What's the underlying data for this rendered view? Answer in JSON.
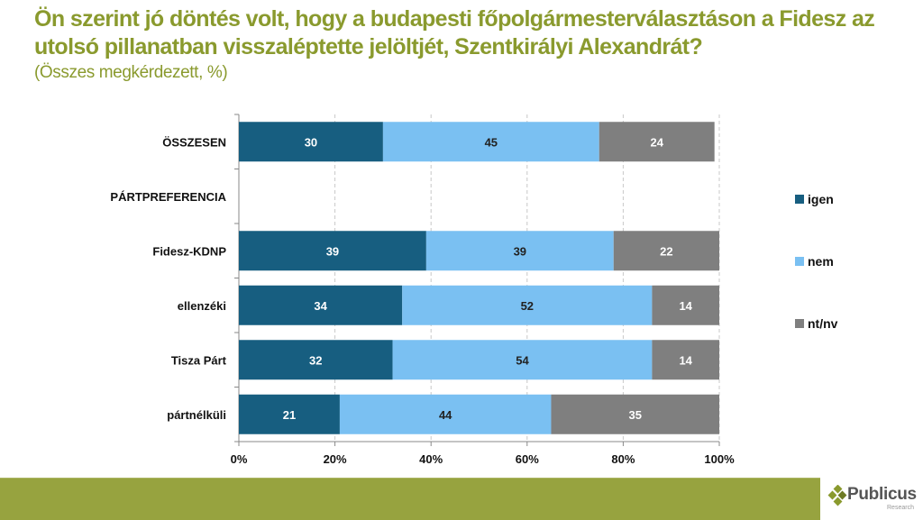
{
  "header": {
    "title": "Ön szerint jó döntés volt, hogy a budapesti főpolgármesterválasztáson a Fidesz az utolsó pillanatban visszaléptette jelöltjét, Szentkirályi Alexandrát?",
    "subtitle": "(Összes megkérdezett, %)"
  },
  "brand": {
    "name": "Publicus",
    "sub": "Research",
    "footer_color": "#97a33f",
    "title_color": "#8a9a2e"
  },
  "chart_data": {
    "type": "bar",
    "orientation": "horizontal",
    "stacked": "percent",
    "title": "Ön szerint jó döntés volt, hogy a budapesti főpolgármesterválasztáson a Fidesz az utolsó pillanatban visszaléptette jelöltjét, Szentkirályi Alexandrát?",
    "subtitle": "(Összes megkérdezett, %)",
    "categories": [
      "ÖSSZESEN",
      "PÁRTPREFERENCIA",
      "Fidesz-KDNP",
      "ellenzéki",
      "Tisza Párt",
      "pártnélküli"
    ],
    "series": [
      {
        "name": "igen",
        "color": "#175e80",
        "label_color": "#ffffff",
        "values": [
          30,
          null,
          39,
          34,
          32,
          21
        ]
      },
      {
        "name": "nem",
        "color": "#7ac0f2",
        "label_color": "#222222",
        "values": [
          45,
          null,
          39,
          52,
          54,
          44
        ]
      },
      {
        "name": "nt/nv",
        "color": "#7f7f7f",
        "label_color": "#ffffff",
        "values": [
          24,
          null,
          22,
          14,
          14,
          35
        ]
      }
    ],
    "xlim": [
      0,
      100
    ],
    "xticks": [
      "0%",
      "20%",
      "40%",
      "60%",
      "80%",
      "100%"
    ],
    "xlabel": "",
    "ylabel": "",
    "grid": "vertical dashed",
    "legend": "right"
  }
}
